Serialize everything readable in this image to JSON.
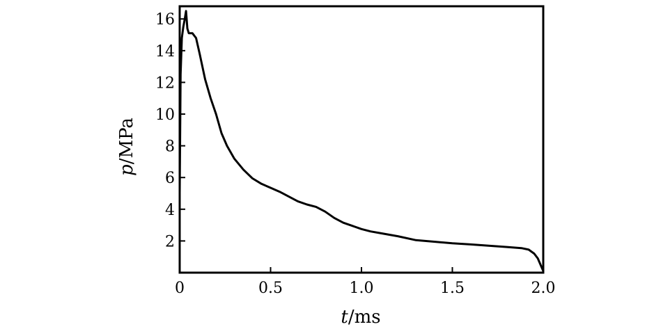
{
  "chart_data": {
    "type": "line",
    "title": "",
    "xlabel": {
      "var": "t",
      "unit": "/ms"
    },
    "ylabel": {
      "var": "p",
      "unit": "/MPa"
    },
    "xlim": [
      0,
      2.0
    ],
    "ylim": [
      0,
      16.8
    ],
    "xticks": [
      0,
      0.5,
      1.0,
      1.5,
      2.0
    ],
    "xtick_labels": [
      "0",
      "0.5",
      "1.0",
      "1.5",
      "2.0"
    ],
    "yticks": [
      2,
      4,
      6,
      8,
      10,
      12,
      14,
      16
    ],
    "ytick_labels": [
      "2",
      "4",
      "6",
      "8",
      "10",
      "12",
      "14",
      "16"
    ],
    "grid": false,
    "series": [
      {
        "color": "#000000",
        "points": [
          [
            0,
            5.0
          ],
          [
            0.005,
            12.5
          ],
          [
            0.012,
            14.8
          ],
          [
            0.02,
            15.5
          ],
          [
            0.028,
            16.0
          ],
          [
            0.035,
            16.5
          ],
          [
            0.042,
            15.4
          ],
          [
            0.05,
            15.1
          ],
          [
            0.07,
            15.1
          ],
          [
            0.09,
            14.8
          ],
          [
            0.11,
            13.8
          ],
          [
            0.14,
            12.2
          ],
          [
            0.17,
            11.0
          ],
          [
            0.2,
            10.0
          ],
          [
            0.23,
            8.8
          ],
          [
            0.26,
            8.0
          ],
          [
            0.3,
            7.2
          ],
          [
            0.35,
            6.5
          ],
          [
            0.4,
            5.95
          ],
          [
            0.45,
            5.6
          ],
          [
            0.5,
            5.35
          ],
          [
            0.55,
            5.1
          ],
          [
            0.6,
            4.8
          ],
          [
            0.65,
            4.5
          ],
          [
            0.7,
            4.3
          ],
          [
            0.75,
            4.15
          ],
          [
            0.8,
            3.85
          ],
          [
            0.85,
            3.45
          ],
          [
            0.9,
            3.15
          ],
          [
            0.95,
            2.95
          ],
          [
            1.0,
            2.75
          ],
          [
            1.05,
            2.6
          ],
          [
            1.1,
            2.5
          ],
          [
            1.2,
            2.3
          ],
          [
            1.3,
            2.05
          ],
          [
            1.4,
            1.95
          ],
          [
            1.5,
            1.85
          ],
          [
            1.6,
            1.78
          ],
          [
            1.7,
            1.7
          ],
          [
            1.8,
            1.62
          ],
          [
            1.88,
            1.55
          ],
          [
            1.92,
            1.45
          ],
          [
            1.95,
            1.2
          ],
          [
            1.97,
            0.9
          ],
          [
            1.985,
            0.5
          ],
          [
            2.0,
            0.1
          ]
        ]
      }
    ]
  }
}
